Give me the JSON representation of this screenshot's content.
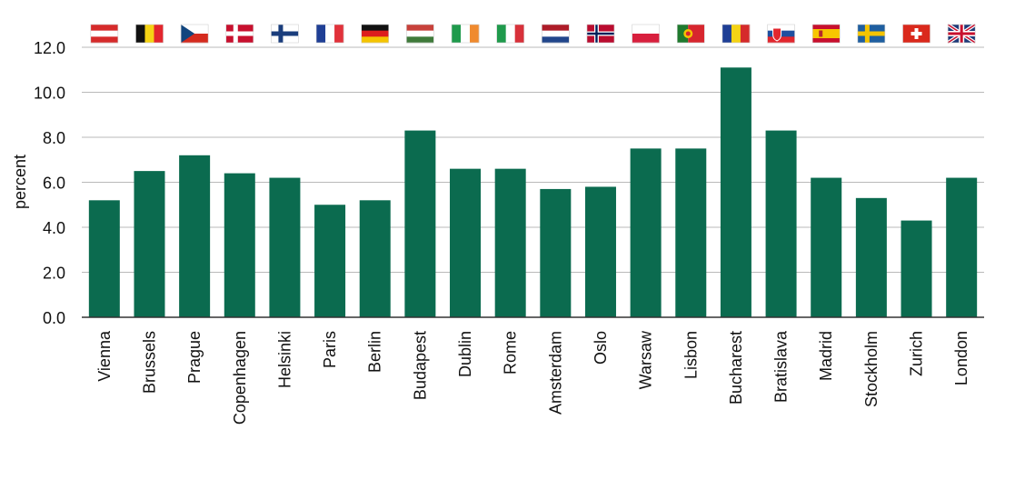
{
  "chart_data": {
    "type": "bar",
    "title": "",
    "xlabel": "",
    "ylabel": "percent",
    "ylim": [
      0,
      12
    ],
    "yticks": [
      "0.0",
      "2.0",
      "4.0",
      "6.0",
      "8.0",
      "10.0",
      "12.0"
    ],
    "ytick_values": [
      0,
      2,
      4,
      6,
      8,
      10,
      12
    ],
    "grid": "horizontal",
    "bar_color": "#0b6b4f",
    "categories": [
      "Vienna",
      "Brussels",
      "Prague",
      "Copenhagen",
      "Helsinki",
      "Paris",
      "Berlin",
      "Budapest",
      "Dublin",
      "Rome",
      "Amsterdam",
      "Oslo",
      "Warsaw",
      "Lisbon",
      "Bucharest",
      "Bratislava",
      "Madrid",
      "Stockholm",
      "Zurich",
      "London"
    ],
    "values": [
      5.2,
      6.5,
      7.2,
      6.4,
      6.2,
      5.0,
      5.2,
      8.3,
      6.6,
      6.6,
      5.7,
      5.8,
      7.5,
      7.5,
      11.1,
      8.3,
      6.2,
      5.3,
      4.3,
      6.2
    ],
    "flags": [
      "austria-flag-icon",
      "belgium-flag-icon",
      "czechia-flag-icon",
      "denmark-flag-icon",
      "finland-flag-icon",
      "france-flag-icon",
      "germany-flag-icon",
      "hungary-flag-icon",
      "ireland-flag-icon",
      "italy-flag-icon",
      "netherlands-flag-icon",
      "norway-flag-icon",
      "poland-flag-icon",
      "portugal-flag-icon",
      "romania-flag-icon",
      "slovakia-flag-icon",
      "spain-flag-icon",
      "sweden-flag-icon",
      "switzerland-flag-icon",
      "uk-flag-icon"
    ]
  }
}
